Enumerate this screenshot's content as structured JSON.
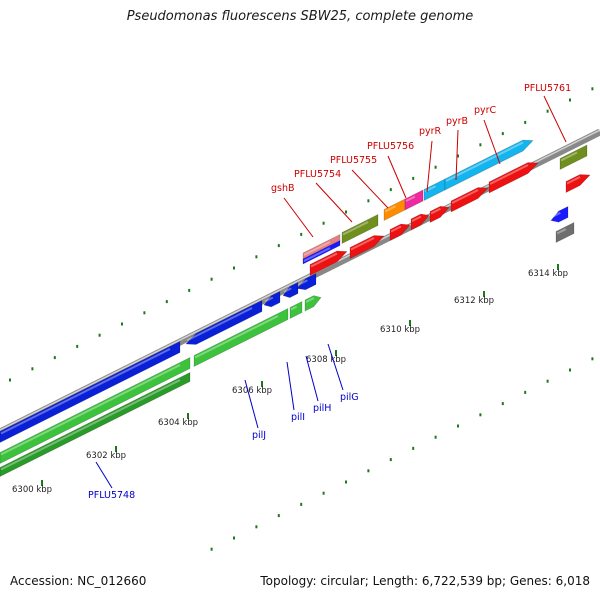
{
  "title": "Pseudomonas fluorescens SBW25, complete genome",
  "footer": {
    "accession": "Accession: NC_012660",
    "summary": "Topology: circular; Length: 6,722,539 bp; Genes: 6,018"
  },
  "ticks": [
    {
      "id": "6300",
      "label": "6300 kbp"
    },
    {
      "id": "6302",
      "label": "6302 kbp"
    },
    {
      "id": "6304",
      "label": "6304 kbp"
    },
    {
      "id": "6306",
      "label": "6306 kbp"
    },
    {
      "id": "6308",
      "label": "6308 kbp"
    },
    {
      "id": "6310",
      "label": "6310 kbp"
    },
    {
      "id": "6312",
      "label": "6312 kbp"
    },
    {
      "id": "6314",
      "label": "6314 kbp"
    }
  ],
  "gene_labels": {
    "PFLU5748": "PFLU5748",
    "pilJ": "pilJ",
    "pilI": "pilI",
    "pilH": "pilH",
    "pilG": "pilG",
    "gshB": "gshB",
    "PFLU5754": "PFLU5754",
    "PFLU5755": "PFLU5755",
    "PFLU5756": "PFLU5756",
    "pyrR": "pyrR",
    "pyrB": "pyrB",
    "pyrC": "pyrC",
    "PFLU5761": "PFLU5761"
  },
  "colors": {
    "label_red": "#cc0000",
    "label_blue": "#0000cc",
    "tick_green": "#1a7a1a",
    "backbone": "#888888",
    "cds_red": "#ee1111",
    "cds_blue": "#0a1fd8",
    "cds_green": "#3cc23c",
    "cds_olive": "#6f8f1e",
    "cds_orange": "#ff8c00",
    "cds_pink": "#ee2a9e",
    "cds_cyan": "#14b4ee",
    "cds_grey": "#6e6e6e",
    "cds_salmon": "#e57f7f"
  }
}
